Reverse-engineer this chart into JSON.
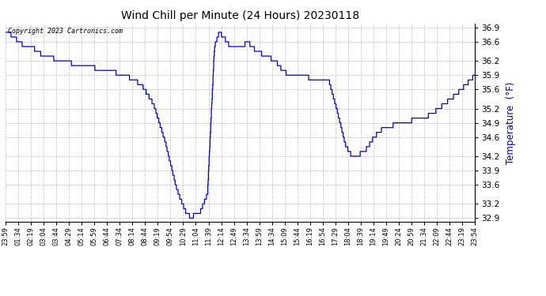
{
  "title": "Wind Chill per Minute (24 Hours) 20230118",
  "ylabel": "Temperature  (°F)",
  "copyright_text": "Copyright 2023 Cartronics.com",
  "line_color": "#0000cc",
  "background_color": "#ffffff",
  "grid_color": "#aaaaaa",
  "ylabel_color": "#0000bb",
  "yticks": [
    32.9,
    33.2,
    33.6,
    33.9,
    34.2,
    34.6,
    34.9,
    35.2,
    35.6,
    35.9,
    36.2,
    36.6,
    36.9
  ],
  "x_labels": [
    "23:59",
    "01:34",
    "02:19",
    "03:04",
    "03:44",
    "04:29",
    "05:14",
    "05:59",
    "06:44",
    "07:34",
    "08:14",
    "08:44",
    "09:19",
    "09:54",
    "10:29",
    "11:04",
    "11:39",
    "12:14",
    "12:49",
    "13:34",
    "13:59",
    "14:34",
    "15:09",
    "15:44",
    "16:19",
    "16:54",
    "17:29",
    "18:04",
    "18:39",
    "19:14",
    "19:49",
    "20:24",
    "20:59",
    "21:34",
    "22:09",
    "22:44",
    "23:19",
    "23:54"
  ],
  "waypoints_t": [
    0,
    0.017,
    0.035,
    0.055,
    0.075,
    0.09,
    0.115,
    0.14,
    0.165,
    0.19,
    0.215,
    0.255,
    0.29,
    0.315,
    0.34,
    0.365,
    0.385,
    0.395,
    0.415,
    0.43,
    0.445,
    0.455,
    0.465,
    0.475,
    0.485,
    0.5,
    0.515,
    0.525,
    0.535,
    0.545,
    0.555,
    0.565,
    0.575,
    0.59,
    0.605,
    0.625,
    0.645,
    0.66,
    0.675,
    0.69,
    0.705,
    0.715,
    0.725,
    0.735,
    0.745,
    0.755,
    0.765,
    0.785,
    0.8,
    0.825,
    0.845,
    0.865,
    0.89,
    0.91,
    0.935,
    0.96,
    0.98,
    1.0
  ],
  "waypoints_y": [
    36.85,
    36.7,
    36.55,
    36.5,
    36.35,
    36.3,
    36.2,
    36.15,
    36.1,
    36.05,
    36.0,
    35.9,
    35.7,
    35.3,
    34.5,
    33.5,
    33.0,
    32.92,
    33.05,
    33.4,
    36.5,
    36.8,
    36.7,
    36.55,
    36.5,
    36.45,
    36.6,
    36.5,
    36.4,
    36.35,
    36.3,
    36.25,
    36.2,
    36.0,
    35.9,
    35.9,
    35.85,
    35.8,
    35.8,
    35.75,
    35.2,
    34.8,
    34.4,
    34.25,
    34.2,
    34.25,
    34.3,
    34.6,
    34.75,
    34.85,
    34.9,
    34.95,
    35.0,
    35.1,
    35.3,
    35.5,
    35.7,
    35.9
  ]
}
